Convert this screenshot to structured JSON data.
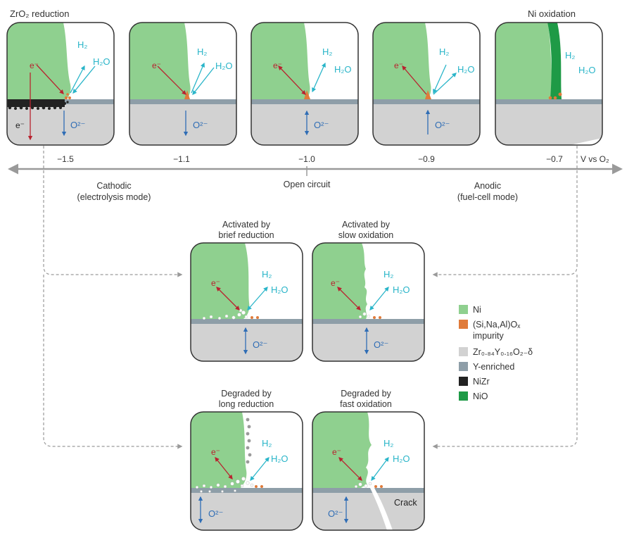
{
  "panels_top": [
    {
      "title": "ZrO₂ reduction",
      "potential": "−1.5"
    },
    {
      "title": "",
      "potential": "−1.1"
    },
    {
      "title": "",
      "potential": "−1.0"
    },
    {
      "title": "",
      "potential": "−0.9"
    },
    {
      "title": "Ni oxidation",
      "potential": "−0.7"
    }
  ],
  "axis": {
    "label": "V vs O₂",
    "left_title": "Cathodic",
    "left_sub": "(electrolysis mode)",
    "center": "Open circuit",
    "right_title": "Anodic",
    "right_sub": "(fuel-cell mode)"
  },
  "panels_bottom": [
    {
      "title_line1": "Activated by",
      "title_line2": "brief reduction"
    },
    {
      "title_line1": "Activated by",
      "title_line2": "slow oxidation"
    },
    {
      "title_line1": "Degraded by",
      "title_line2": "long reduction"
    },
    {
      "title_line1": "Degraded by",
      "title_line2": "fast oxidation"
    }
  ],
  "species": {
    "h2": "H₂",
    "h2o": "H₂O",
    "electron": "e⁻",
    "oxide": "O²⁻",
    "crack": "Crack"
  },
  "legend": [
    {
      "label": "Ni",
      "color": "#8fd08f"
    },
    {
      "label": "(Si,Na,Al)Oₓ",
      "label2": "impurity",
      "color": "#e07b3a"
    },
    {
      "label": "Zr₀.₈₄Y₀.₁₆O₂₋δ",
      "color": "#d2d2d2"
    },
    {
      "label": "Y-enriched",
      "color": "#8e9ea8"
    },
    {
      "label": "NiZr",
      "color": "#222222"
    },
    {
      "label": "NiO",
      "color": "#1e9a46"
    }
  ],
  "colors": {
    "ni": "#8fd08f",
    "nio": "#1e9a46",
    "ysz": "#d2d2d2",
    "yenriched": "#8e9ea8",
    "impurity": "#e07b3a",
    "nizr": "#222222",
    "electron_arrow": "#b8232f",
    "gas_arrow": "#2ab5c9",
    "oxide_arrow": "#2f6db5",
    "axis": "#9a9a9a"
  }
}
